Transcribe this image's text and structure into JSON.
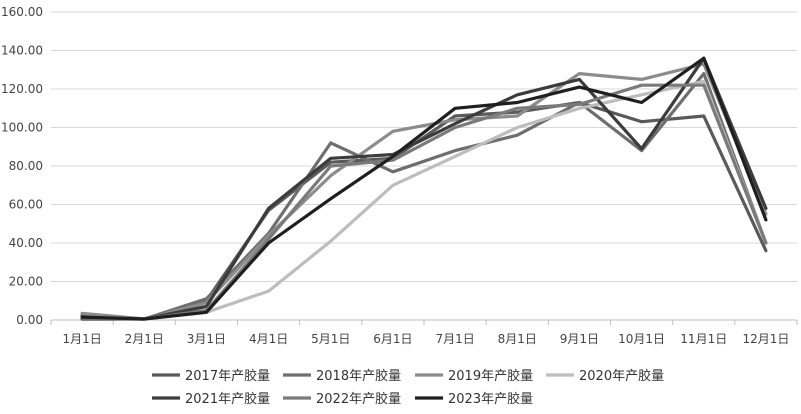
{
  "chart_data": {
    "type": "line",
    "categories": [
      "1月1日",
      "2月1日",
      "3月1日",
      "4月1日",
      "5月1日",
      "6月1日",
      "7月1日",
      "8月1日",
      "9月1日",
      "10月1日",
      "11月1日",
      "12月1日"
    ],
    "ylim": [
      0,
      160
    ],
    "yticks": [
      "0.00",
      "20.00",
      "40.00",
      "60.00",
      "80.00",
      "100.00",
      "120.00",
      "140.00",
      "160.00"
    ],
    "grid": true,
    "legend_position": "bottom",
    "series": [
      {
        "name": "2017年产胶量",
        "color": "#5a5a5a",
        "values": [
          2.5,
          0.5,
          10,
          57,
          82,
          84,
          106,
          108,
          113,
          103,
          106,
          36
        ]
      },
      {
        "name": "2018年产胶量",
        "color": "#6e6e6e",
        "values": [
          1.5,
          0.5,
          11,
          45,
          92,
          77,
          88,
          96,
          113,
          88,
          128,
          40
        ]
      },
      {
        "name": "2019年产胶量",
        "color": "#8c8c8c",
        "values": [
          3.5,
          0.5,
          9,
          44,
          75,
          98,
          104,
          106,
          128,
          125,
          133,
          55
        ]
      },
      {
        "name": "2020年产胶量",
        "color": "#bdbdbd",
        "values": [
          1,
          0.5,
          4,
          15,
          41,
          70,
          85,
          100,
          110,
          117,
          124,
          40
        ]
      },
      {
        "name": "2021年产胶量",
        "color": "#3c3c3c",
        "values": [
          0.5,
          0.5,
          7,
          58,
          84,
          86,
          102,
          117,
          125,
          89,
          136,
          58
        ]
      },
      {
        "name": "2022年产胶量",
        "color": "#7a7a7a",
        "values": [
          1,
          0.5,
          5,
          42,
          80,
          83,
          100,
          110,
          112,
          122,
          122,
          40
        ]
      },
      {
        "name": "2023年产胶量",
        "color": "#1f1f1f",
        "values": [
          1.5,
          0.5,
          4,
          40,
          63,
          85,
          110,
          113,
          121,
          113,
          136,
          52
        ]
      }
    ]
  }
}
